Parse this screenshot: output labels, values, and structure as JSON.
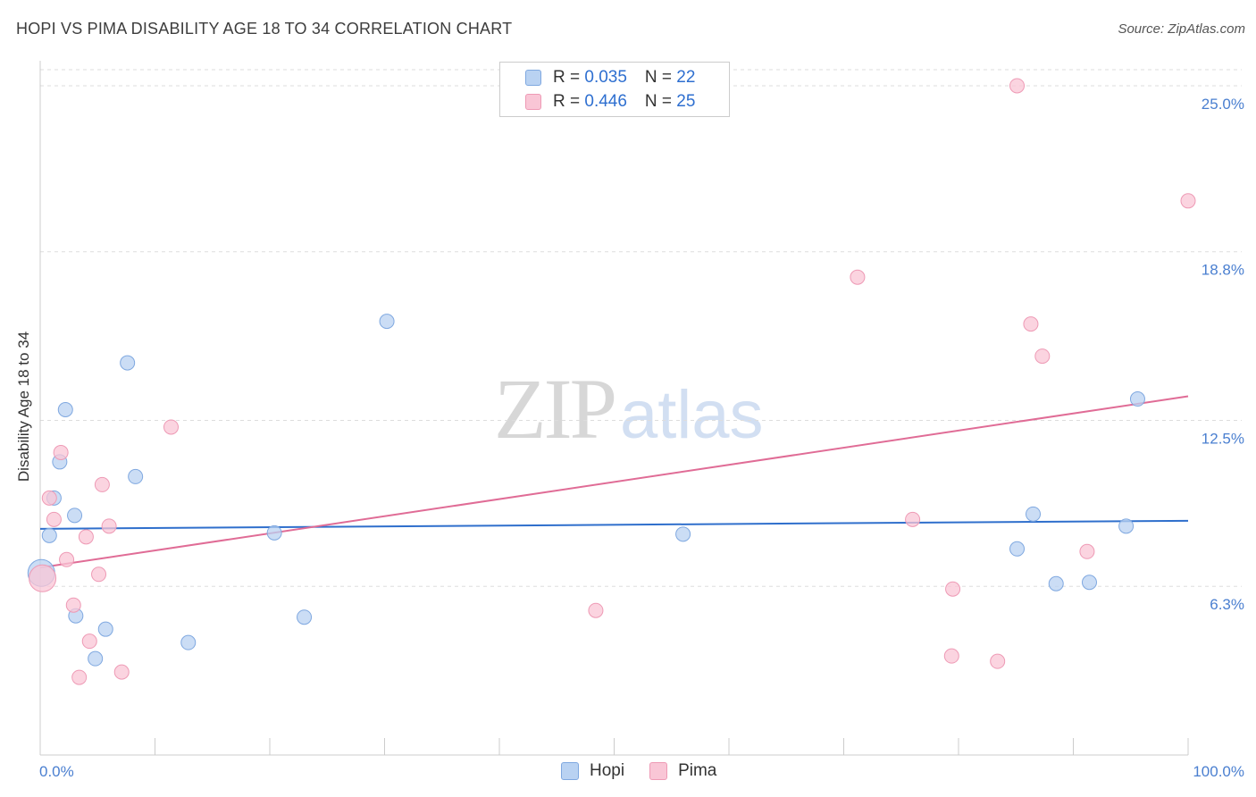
{
  "title": "HOPI VS PIMA DISABILITY AGE 18 TO 34 CORRELATION CHART",
  "source": "Source: ZipAtlas.com",
  "watermark": {
    "zip": "ZIP",
    "atlas": "atlas"
  },
  "legend": {
    "rows": [
      {
        "r_label": "R = ",
        "r_value": "0.035",
        "n_label": "N = ",
        "n_value": "22"
      },
      {
        "r_label": "R = ",
        "r_value": "0.446",
        "n_label": "N = ",
        "n_value": "25"
      }
    ]
  },
  "chart_data": {
    "type": "scatter",
    "title": "HOPI VS PIMA DISABILITY AGE 18 TO 34 CORRELATION CHART",
    "xlabel": "",
    "ylabel": "Disability Age 18 to 34",
    "xlim": [
      0,
      100
    ],
    "ylim": [
      0,
      25.6
    ],
    "x_tick_labels": [
      "0.0%",
      "100.0%"
    ],
    "y_ticks": [
      {
        "value": 6.3,
        "label": "6.3%"
      },
      {
        "value": 12.5,
        "label": "12.5%"
      },
      {
        "value": 18.8,
        "label": "18.8%"
      },
      {
        "value": 25.0,
        "label": "25.0%"
      }
    ],
    "grid": "horizontal dashed",
    "colors": {
      "hopi_fill": "#b9d2f2",
      "hopi_stroke": "#7fa8e0",
      "hopi_line": "#2f6fcc",
      "pima_fill": "#f9c6d6",
      "pima_stroke": "#ee9ab5",
      "pima_line": "#e06c96",
      "tick_text": "#4a7fd0",
      "grid": "#dddddd",
      "axis": "#cccccc"
    },
    "series": [
      {
        "name": "Hopi",
        "r": 0.035,
        "n": 22,
        "trend": {
          "x": [
            0,
            100
          ],
          "y": [
            8.45,
            8.75
          ]
        },
        "points": [
          {
            "x": 0.1,
            "y": 6.8,
            "size": 30
          },
          {
            "x": 0.8,
            "y": 8.2,
            "size": 16
          },
          {
            "x": 1.2,
            "y": 9.6,
            "size": 16
          },
          {
            "x": 1.7,
            "y": 10.95,
            "size": 16
          },
          {
            "x": 2.2,
            "y": 12.9,
            "size": 16
          },
          {
            "x": 3.0,
            "y": 8.95,
            "size": 16
          },
          {
            "x": 3.1,
            "y": 5.2,
            "size": 16
          },
          {
            "x": 4.8,
            "y": 3.6,
            "size": 16
          },
          {
            "x": 5.7,
            "y": 4.7,
            "size": 16
          },
          {
            "x": 7.6,
            "y": 14.65,
            "size": 16
          },
          {
            "x": 8.3,
            "y": 10.4,
            "size": 16
          },
          {
            "x": 12.9,
            "y": 4.2,
            "size": 16
          },
          {
            "x": 20.4,
            "y": 8.3,
            "size": 16
          },
          {
            "x": 23.0,
            "y": 5.15,
            "size": 16
          },
          {
            "x": 30.2,
            "y": 16.2,
            "size": 16
          },
          {
            "x": 56.0,
            "y": 8.25,
            "size": 16
          },
          {
            "x": 85.1,
            "y": 7.7,
            "size": 16
          },
          {
            "x": 86.5,
            "y": 9.0,
            "size": 16
          },
          {
            "x": 88.5,
            "y": 6.4,
            "size": 16
          },
          {
            "x": 91.4,
            "y": 6.45,
            "size": 16
          },
          {
            "x": 94.6,
            "y": 8.55,
            "size": 16
          },
          {
            "x": 95.6,
            "y": 13.3,
            "size": 16
          }
        ]
      },
      {
        "name": "Pima",
        "r": 0.446,
        "n": 25,
        "trend": {
          "x": [
            0,
            100
          ],
          "y": [
            7.0,
            13.4
          ]
        },
        "points": [
          {
            "x": 0.2,
            "y": 6.6,
            "size": 30
          },
          {
            "x": 0.8,
            "y": 9.6,
            "size": 16
          },
          {
            "x": 1.2,
            "y": 8.8,
            "size": 16
          },
          {
            "x": 1.8,
            "y": 11.3,
            "size": 16
          },
          {
            "x": 2.3,
            "y": 7.3,
            "size": 16
          },
          {
            "x": 2.9,
            "y": 5.6,
            "size": 16
          },
          {
            "x": 3.4,
            "y": 2.9,
            "size": 16
          },
          {
            "x": 4.0,
            "y": 8.15,
            "size": 16
          },
          {
            "x": 4.3,
            "y": 4.25,
            "size": 16
          },
          {
            "x": 5.1,
            "y": 6.75,
            "size": 16
          },
          {
            "x": 5.4,
            "y": 10.1,
            "size": 16
          },
          {
            "x": 6.0,
            "y": 8.55,
            "size": 16
          },
          {
            "x": 7.1,
            "y": 3.1,
            "size": 16
          },
          {
            "x": 11.4,
            "y": 12.25,
            "size": 16
          },
          {
            "x": 48.4,
            "y": 5.4,
            "size": 16
          },
          {
            "x": 71.2,
            "y": 17.85,
            "size": 16
          },
          {
            "x": 76.0,
            "y": 8.8,
            "size": 16
          },
          {
            "x": 79.5,
            "y": 6.2,
            "size": 16
          },
          {
            "x": 79.4,
            "y": 3.7,
            "size": 16
          },
          {
            "x": 83.4,
            "y": 3.5,
            "size": 16
          },
          {
            "x": 85.1,
            "y": 25.0,
            "size": 16
          },
          {
            "x": 86.3,
            "y": 16.1,
            "size": 16
          },
          {
            "x": 87.3,
            "y": 14.9,
            "size": 16
          },
          {
            "x": 91.2,
            "y": 7.6,
            "size": 16
          },
          {
            "x": 100.0,
            "y": 20.7,
            "size": 16
          }
        ]
      }
    ]
  }
}
